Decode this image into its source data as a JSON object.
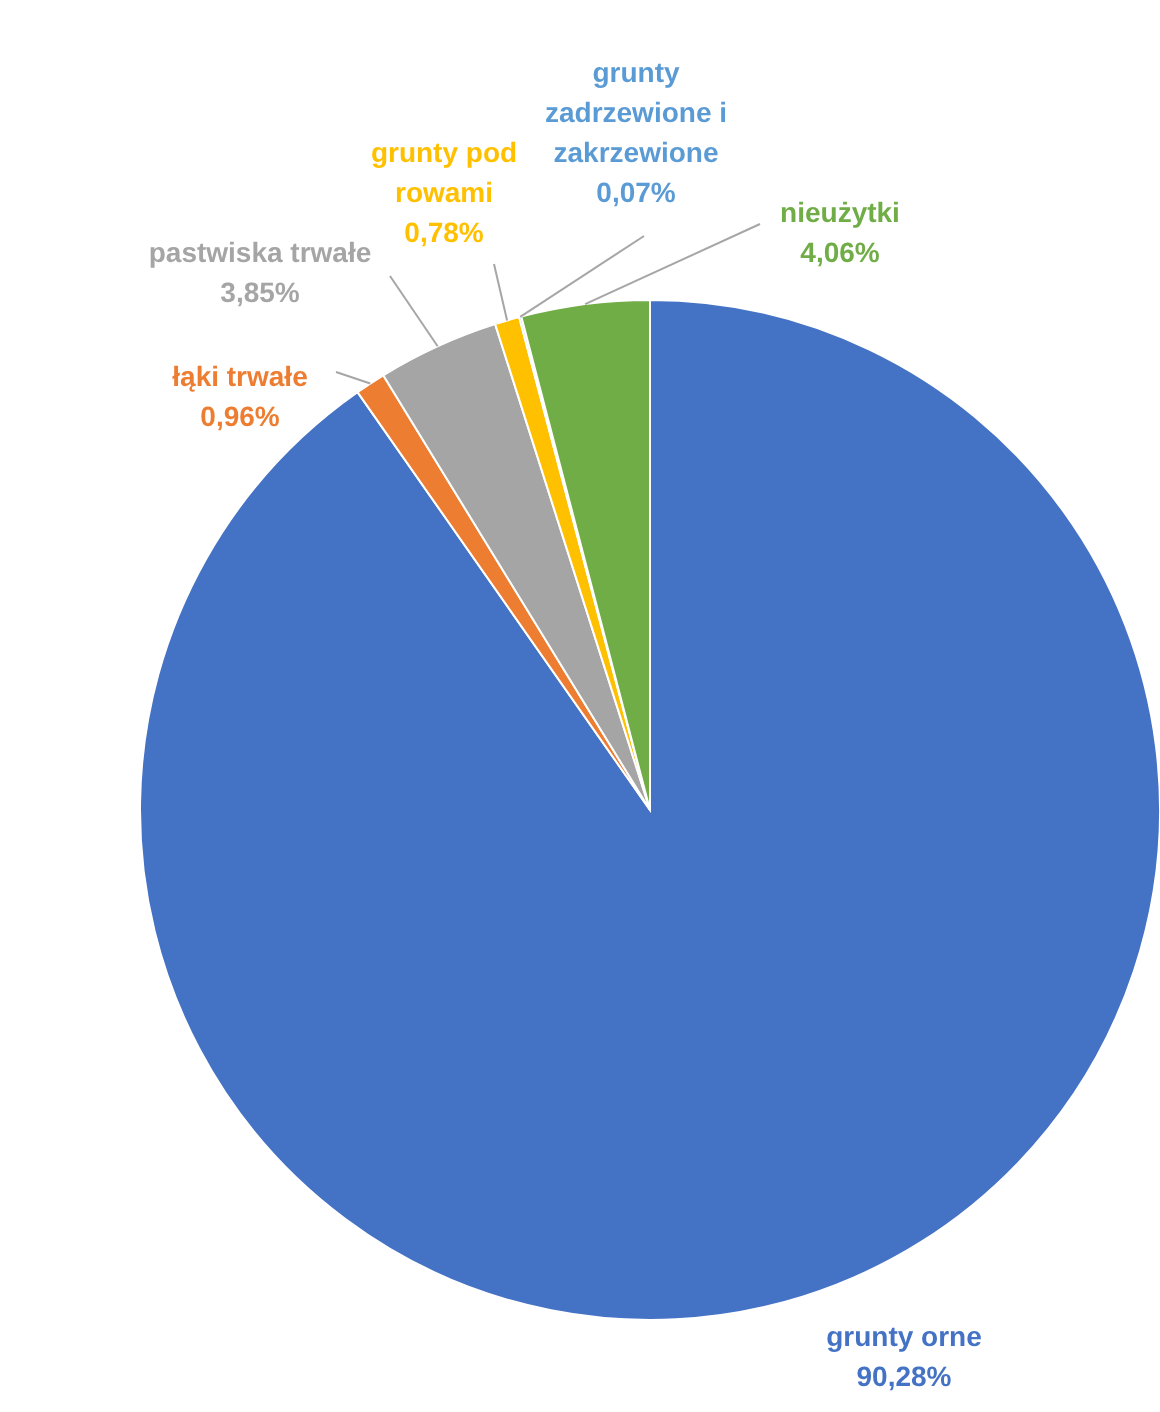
{
  "chart_data": {
    "type": "pie",
    "categories": [
      "grunty orne",
      "łąki trwałe",
      "pastwiska trwałe",
      "grunty pod rowami",
      "grunty zadrzewione i zakrzewione",
      "nieużytki"
    ],
    "values": [
      90.28,
      0.96,
      3.85,
      0.78,
      0.07,
      4.06
    ],
    "value_labels": [
      "90,28%",
      "0,96%",
      "3,85%",
      "0,78%",
      "0,07%",
      "4,06%"
    ],
    "colors": [
      "#4472c4",
      "#ed7d31",
      "#a5a5a5",
      "#ffc000",
      "#5b9bd5",
      "#70ad47"
    ]
  }
}
